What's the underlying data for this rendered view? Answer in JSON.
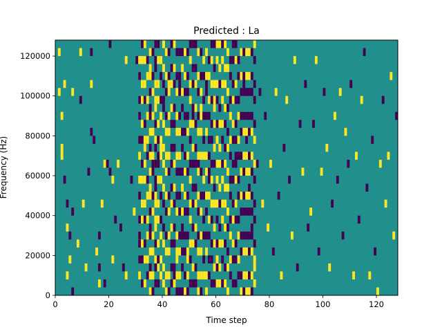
{
  "chart_data": {
    "type": "heatmap",
    "title": "Predicted : La",
    "xlabel": "Time step",
    "ylabel": "Frequency (Hz)",
    "xlim": [
      0,
      128
    ],
    "ylim": [
      0,
      128000
    ],
    "x_ticks": [
      0,
      20,
      40,
      60,
      80,
      100,
      120
    ],
    "y_ticks": [
      0,
      20000,
      40000,
      60000,
      80000,
      100000,
      120000
    ],
    "x_tick_labels": [
      "0",
      "20",
      "40",
      "60",
      "80",
      "100",
      "120"
    ],
    "y_tick_labels": [
      "0",
      "20000",
      "40000",
      "60000",
      "80000",
      "100000",
      "120000"
    ],
    "colors": {
      "background": "#21908d",
      "high": "#fde725",
      "low": "#440154"
    },
    "cell_height_hz": 4000,
    "cells": [
      [
        1,
        120000,
        1
      ],
      [
        1,
        100000,
        1
      ],
      [
        2,
        88000,
        1
      ],
      [
        2,
        72000,
        1
      ],
      [
        2,
        68000,
        1
      ],
      [
        3,
        104000,
        1
      ],
      [
        3,
        56000,
        0
      ],
      [
        4,
        44000,
        0
      ],
      [
        5,
        28000,
        0
      ],
      [
        4,
        32000,
        1
      ],
      [
        6,
        100000,
        1
      ],
      [
        6,
        40000,
        0
      ],
      [
        5,
        16000,
        1
      ],
      [
        4,
        8000,
        1
      ],
      [
        6,
        0,
        0
      ],
      [
        9,
        120000,
        1
      ],
      [
        9,
        96000,
        0
      ],
      [
        8,
        24000,
        1
      ],
      [
        10,
        44000,
        1
      ],
      [
        11,
        12000,
        1
      ],
      [
        13,
        120000,
        0
      ],
      [
        13,
        104000,
        1
      ],
      [
        13,
        80000,
        0
      ],
      [
        14,
        76000,
        0
      ],
      [
        12,
        60000,
        0
      ],
      [
        15,
        20000,
        1
      ],
      [
        16,
        28000,
        0
      ],
      [
        16,
        12000,
        0
      ],
      [
        16,
        4000,
        1
      ],
      [
        17,
        44000,
        1
      ],
      [
        18,
        64000,
        1
      ],
      [
        18,
        4000,
        0
      ],
      [
        20,
        124000,
        0
      ],
      [
        20,
        60000,
        0
      ],
      [
        21,
        16000,
        1
      ],
      [
        19,
        64000,
        0
      ],
      [
        21,
        56000,
        1
      ],
      [
        22,
        36000,
        0
      ],
      [
        23,
        64000,
        1
      ],
      [
        24,
        32000,
        0
      ],
      [
        25,
        12000,
        0
      ],
      [
        26,
        116000,
        1
      ],
      [
        26,
        8000,
        1
      ],
      [
        28,
        56000,
        0
      ],
      [
        29,
        40000,
        1
      ],
      [
        30,
        116000,
        0
      ],
      [
        31,
        24000,
        0
      ],
      [
        32,
        4000,
        1
      ],
      [
        34,
        116000,
        1
      ],
      [
        33,
        72000,
        1
      ],
      [
        36,
        64000,
        0
      ],
      [
        37,
        48000,
        1
      ],
      [
        38,
        12000,
        1
      ],
      [
        38,
        68000,
        0
      ],
      [
        39,
        8000,
        1
      ],
      [
        39,
        72000,
        1
      ],
      [
        40,
        24000,
        0
      ],
      [
        40,
        96000,
        0
      ],
      [
        41,
        48000,
        1
      ],
      [
        42,
        104000,
        1
      ],
      [
        44,
        8000,
        0
      ],
      [
        45,
        16000,
        1
      ],
      [
        46,
        104000,
        0
      ],
      [
        47,
        80000,
        0
      ],
      [
        47,
        28000,
        0
      ],
      [
        48,
        48000,
        0
      ],
      [
        49,
        16000,
        1
      ],
      [
        51,
        88000,
        0
      ],
      [
        52,
        4000,
        0
      ],
      [
        53,
        64000,
        0
      ],
      [
        54,
        92000,
        1
      ],
      [
        54,
        40000,
        0
      ],
      [
        56,
        104000,
        0
      ],
      [
        57,
        60000,
        0
      ],
      [
        58,
        44000,
        1
      ],
      [
        59,
        96000,
        1
      ],
      [
        60,
        64000,
        1
      ],
      [
        60,
        12000,
        0
      ],
      [
        65,
        56000,
        0
      ],
      [
        66,
        36000,
        1
      ],
      [
        67,
        68000,
        0
      ],
      [
        68,
        16000,
        1
      ],
      [
        70,
        104000,
        0
      ],
      [
        71,
        76000,
        0
      ],
      [
        72,
        52000,
        0
      ],
      [
        73,
        32000,
        0
      ],
      [
        74,
        12000,
        1
      ],
      [
        75,
        64000,
        0
      ],
      [
        76,
        100000,
        0
      ],
      [
        77,
        44000,
        1
      ],
      [
        78,
        88000,
        0
      ],
      [
        79,
        32000,
        1
      ],
      [
        80,
        64000,
        1
      ],
      [
        81,
        20000,
        0
      ],
      [
        82,
        100000,
        1
      ],
      [
        83,
        48000,
        0
      ],
      [
        84,
        8000,
        1
      ],
      [
        85,
        72000,
        0
      ],
      [
        86,
        96000,
        1
      ],
      [
        87,
        56000,
        0
      ],
      [
        88,
        28000,
        1
      ],
      [
        89,
        116000,
        1
      ],
      [
        90,
        12000,
        0
      ],
      [
        91,
        84000,
        0
      ],
      [
        92,
        60000,
        1
      ],
      [
        93,
        104000,
        0
      ],
      [
        94,
        32000,
        0
      ],
      [
        95,
        40000,
        1
      ],
      [
        96,
        84000,
        0
      ],
      [
        97,
        116000,
        1
      ],
      [
        98,
        20000,
        0
      ],
      [
        99,
        60000,
        1
      ],
      [
        100,
        100000,
        0
      ],
      [
        101,
        72000,
        1
      ],
      [
        102,
        12000,
        1
      ],
      [
        103,
        44000,
        0
      ],
      [
        104,
        88000,
        1
      ],
      [
        105,
        56000,
        0
      ],
      [
        106,
        100000,
        1
      ],
      [
        107,
        28000,
        0
      ],
      [
        108,
        80000,
        1
      ],
      [
        109,
        64000,
        0
      ],
      [
        110,
        104000,
        0
      ],
      [
        111,
        8000,
        1
      ],
      [
        112,
        68000,
        1
      ],
      [
        113,
        36000,
        0
      ],
      [
        114,
        96000,
        1
      ],
      [
        115,
        120000,
        0
      ],
      [
        116,
        52000,
        0
      ],
      [
        117,
        8000,
        1
      ],
      [
        118,
        76000,
        0
      ],
      [
        119,
        20000,
        0
      ],
      [
        120,
        0,
        1
      ],
      [
        121,
        64000,
        1
      ],
      [
        122,
        96000,
        0
      ],
      [
        123,
        44000,
        1
      ],
      [
        124,
        68000,
        1
      ],
      [
        125,
        108000,
        1
      ],
      [
        126,
        28000,
        1
      ],
      [
        127,
        88000,
        0
      ]
    ],
    "columns": [
      [
        31,
        1,
        4
      ],
      [
        31,
        0,
        24
      ],
      [
        32,
        1,
        52
      ],
      [
        33,
        1,
        64
      ],
      [
        34,
        1,
        20
      ],
      [
        35,
        0,
        60
      ],
      [
        35,
        1,
        36
      ],
      [
        36,
        1,
        8
      ],
      [
        37,
        1,
        32
      ],
      [
        37,
        0,
        48
      ],
      [
        38,
        1,
        24
      ],
      [
        39,
        1,
        40
      ],
      [
        40,
        1,
        24
      ],
      [
        41,
        1,
        8
      ],
      [
        42,
        1,
        20
      ],
      [
        43,
        0,
        40
      ],
      [
        44,
        0,
        32
      ],
      [
        45,
        1,
        16
      ],
      [
        46,
        0,
        28
      ],
      [
        47,
        0,
        4
      ],
      [
        48,
        0,
        12
      ],
      [
        49,
        0,
        24
      ],
      [
        50,
        1,
        8
      ],
      [
        51,
        0,
        16
      ],
      [
        52,
        0,
        8
      ],
      [
        53,
        1,
        12
      ],
      [
        54,
        1,
        24
      ],
      [
        55,
        0,
        12
      ],
      [
        56,
        1,
        28
      ],
      [
        57,
        0,
        36
      ],
      [
        58,
        0,
        4
      ],
      [
        59,
        1,
        32
      ],
      [
        60,
        1,
        88
      ],
      [
        61,
        1,
        96
      ],
      [
        62,
        1,
        92
      ],
      [
        63,
        1,
        80
      ],
      [
        64,
        1,
        28
      ],
      [
        65,
        0,
        52
      ],
      [
        66,
        0,
        20
      ],
      [
        67,
        0,
        12
      ],
      [
        68,
        0,
        8
      ],
      [
        69,
        0,
        24
      ],
      [
        70,
        0,
        36
      ],
      [
        71,
        1,
        28
      ],
      [
        72,
        0,
        20
      ],
      [
        73,
        0,
        12
      ],
      [
        74,
        0,
        16
      ]
    ]
  }
}
